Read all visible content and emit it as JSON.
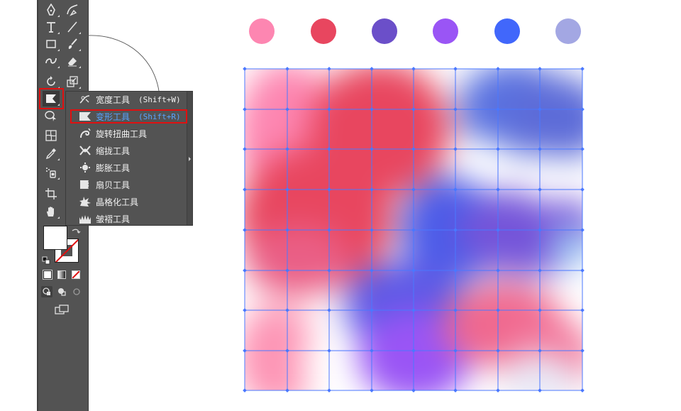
{
  "toolbar": {
    "tools": [
      "pen-tool",
      "curvature-tool",
      "type-tool",
      "line-segment-tool",
      "rectangle-tool",
      "paintbrush-tool",
      "shaper-tool",
      "eraser-tool",
      "rotate-tool",
      "scale-tool",
      "warp-tool",
      "free-transform-tool",
      "mesh-tool",
      "eyedropper-tool",
      "symbol-sprayer-tool",
      "artboard-tool",
      "hand-tool"
    ],
    "active_tool": "warp-tool"
  },
  "flyout": {
    "items": [
      {
        "label": "宽度工具",
        "shortcut": "(Shift+W)",
        "icon": "width-tool-icon"
      },
      {
        "label": "变形工具",
        "shortcut": "(Shift+R)",
        "icon": "warp-tool-icon",
        "selected": true
      },
      {
        "label": "旋转扭曲工具",
        "shortcut": "",
        "icon": "twirl-tool-icon"
      },
      {
        "label": "缩拢工具",
        "shortcut": "",
        "icon": "pucker-tool-icon"
      },
      {
        "label": "膨胀工具",
        "shortcut": "",
        "icon": "bloat-tool-icon"
      },
      {
        "label": "扇贝工具",
        "shortcut": "",
        "icon": "scallop-tool-icon"
      },
      {
        "label": "晶格化工具",
        "shortcut": "",
        "icon": "crystallize-tool-icon"
      },
      {
        "label": "皱褶工具",
        "shortcut": "",
        "icon": "wrinkle-tool-icon"
      }
    ]
  },
  "palette": {
    "colors": [
      "#fd86b1",
      "#e8465f",
      "#6b4fc9",
      "#9a55f5",
      "#4167fb",
      "#a3a7e3"
    ]
  },
  "colors": {
    "toolbar_bg": "#535353",
    "highlight": "#e01010",
    "selected_text": "#58a3ff",
    "mesh_line": "#4a78ff"
  }
}
